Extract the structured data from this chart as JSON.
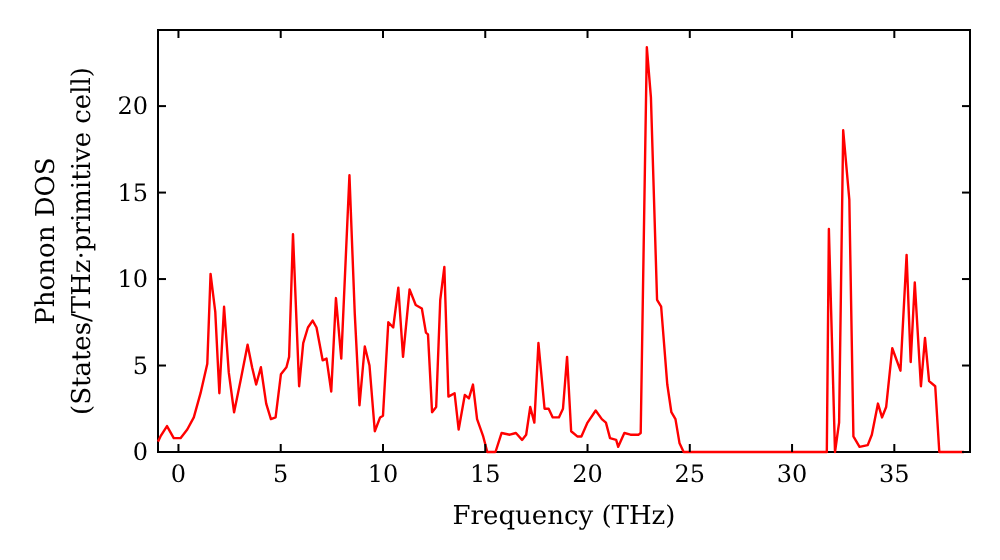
{
  "chart_data": {
    "type": "line",
    "xlabel": "Frequency (THz)",
    "ylabel": "Phonon DOS\n(States/THz·primitive cell)",
    "xlim": [
      -1,
      38.7
    ],
    "ylim": [
      0,
      24.4
    ],
    "xticks": [
      0,
      5,
      10,
      15,
      20,
      25,
      30,
      35
    ],
    "yticks": [
      0,
      5,
      10,
      15,
      20
    ],
    "marker": "none",
    "line_style": "solid",
    "series": [
      {
        "color": "#ff0000",
        "x": [
          -1,
          -0.88,
          -0.56,
          -0.23,
          0.1,
          0.43,
          0.75,
          1.08,
          1.41,
          1.57,
          1.8,
          2.0,
          2.23,
          2.46,
          2.72,
          3.05,
          3.38,
          3.6,
          3.8,
          4.03,
          4.29,
          4.52,
          4.75,
          5.01,
          5.28,
          5.41,
          5.6,
          5.9,
          6.1,
          6.33,
          6.56,
          6.75,
          7.05,
          7.24,
          7.47,
          7.7,
          7.96,
          8.36,
          8.62,
          8.85,
          9.11,
          9.34,
          9.6,
          9.86,
          10.0,
          10.26,
          10.5,
          10.75,
          10.98,
          11.3,
          11.6,
          11.9,
          12.1,
          12.2,
          12.4,
          12.6,
          12.8,
          13.0,
          13.2,
          13.5,
          13.7,
          14.0,
          14.2,
          14.4,
          14.6,
          14.9,
          15.1,
          15.5,
          15.8,
          16.2,
          16.5,
          16.8,
          17.0,
          17.2,
          17.4,
          17.6,
          17.9,
          18.1,
          18.3,
          18.6,
          18.8,
          19.0,
          19.2,
          19.5,
          19.7,
          20.0,
          20.4,
          20.7,
          20.9,
          21.1,
          21.4,
          21.5,
          21.8,
          22.1,
          22.5,
          22.6,
          22.9,
          23.1,
          23.4,
          23.6,
          23.9,
          24.1,
          24.3,
          24.5,
          24.7,
          31.7,
          31.8,
          32.1,
          32.3,
          32.5,
          32.8,
          33.0,
          33.3,
          33.7,
          33.9,
          34.2,
          34.4,
          34.6,
          34.9,
          35.3,
          35.6,
          35.8,
          36.0,
          36.3,
          36.5,
          36.7,
          37.0,
          37.2,
          38.4
        ],
        "values": [
          0.6,
          0.9,
          1.5,
          0.8,
          0.8,
          1.3,
          2.0,
          3.4,
          5.1,
          10.3,
          8.1,
          3.4,
          8.4,
          4.6,
          2.3,
          4.2,
          6.2,
          4.9,
          3.9,
          4.9,
          2.8,
          1.9,
          2.0,
          4.5,
          4.9,
          5.5,
          12.6,
          3.8,
          6.3,
          7.2,
          7.6,
          7.2,
          5.3,
          5.4,
          3.5,
          8.9,
          5.4,
          16.0,
          8.0,
          2.7,
          6.1,
          5.0,
          1.2,
          2.0,
          2.1,
          7.5,
          7.2,
          9.5,
          5.5,
          9.4,
          8.5,
          8.3,
          6.9,
          6.8,
          2.3,
          2.6,
          8.8,
          10.7,
          3.2,
          3.4,
          1.3,
          3.3,
          3.1,
          3.9,
          1.9,
          0.9,
          0,
          0,
          1.1,
          1.0,
          1.1,
          0.7,
          1.0,
          2.6,
          1.7,
          6.3,
          2.5,
          2.5,
          2.0,
          2.0,
          2.5,
          5.5,
          1.2,
          0.9,
          0.9,
          1.7,
          2.4,
          1.9,
          1.7,
          0.8,
          0.7,
          0.3,
          1.1,
          1.0,
          1.0,
          1.1,
          23.4,
          20.5,
          8.8,
          8.4,
          3.9,
          2.3,
          1.9,
          0.5,
          0,
          0,
          12.9,
          0,
          1.7,
          18.6,
          14.6,
          0.9,
          0.3,
          0.4,
          1.0,
          2.8,
          2.0,
          2.6,
          6.0,
          4.7,
          11.4,
          5.2,
          9.8,
          3.8,
          6.6,
          4.1,
          3.8,
          0,
          0
        ]
      }
    ]
  }
}
